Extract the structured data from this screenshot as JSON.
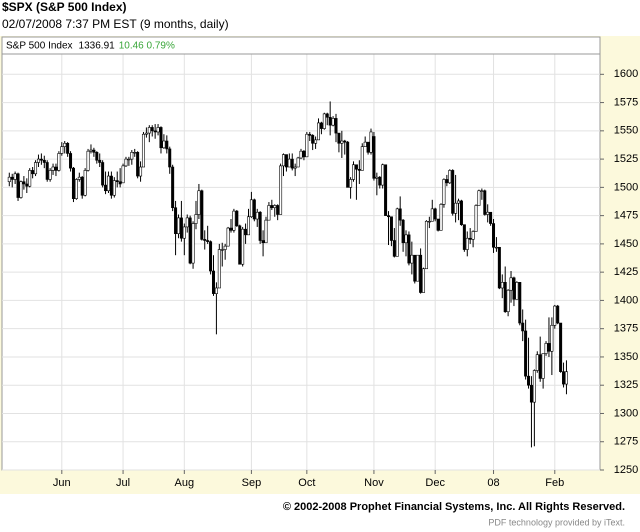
{
  "chart_data": {
    "type": "candlestick",
    "title": "$SPX (S&P 500 Index)",
    "subtitle": "02/07/2008 7:37 PM EST (9 months, daily)",
    "legend": {
      "name": "S&P 500 Index",
      "last": "1336.91",
      "change": "10.46 0.79%",
      "change_color": "#3aa63a"
    },
    "footer": "© 2002-2008 Prophet Financial Systems, Inc. All Rights Reserved.",
    "credit": "PDF technology provided by iText.",
    "ylim": [
      1250,
      1633
    ],
    "yticks": [
      1250,
      1275,
      1300,
      1325,
      1350,
      1375,
      1400,
      1425,
      1450,
      1475,
      1500,
      1525,
      1550,
      1575,
      1600
    ],
    "xlim": [
      -2.5,
      202.5
    ],
    "xticks": [
      {
        "value": 18,
        "label": "Jun"
      },
      {
        "value": 39,
        "label": "Jul"
      },
      {
        "value": 60,
        "label": "Aug"
      },
      {
        "value": 83,
        "label": "Sep"
      },
      {
        "value": 102,
        "label": "Oct"
      },
      {
        "value": 125,
        "label": "Nov"
      },
      {
        "value": 146,
        "label": "Dec"
      },
      {
        "value": 166,
        "label": "08"
      },
      {
        "value": 187,
        "label": "Feb"
      }
    ],
    "grid": true,
    "color": "#000000",
    "ohlc": [
      [
        1505,
        1513,
        1501,
        1509
      ],
      [
        1509,
        1512,
        1500,
        1507
      ],
      [
        1507,
        1514,
        1503,
        1512
      ],
      [
        1512,
        1513,
        1488,
        1491
      ],
      [
        1491,
        1506,
        1490,
        1505
      ],
      [
        1505,
        1510,
        1498,
        1503
      ],
      [
        1503,
        1508,
        1495,
        1501
      ],
      [
        1501,
        1517,
        1500,
        1515
      ],
      [
        1515,
        1518,
        1508,
        1512
      ],
      [
        1512,
        1524,
        1510,
        1522
      ],
      [
        1522,
        1529,
        1518,
        1525
      ],
      [
        1525,
        1530,
        1520,
        1524
      ],
      [
        1524,
        1528,
        1517,
        1522
      ],
      [
        1522,
        1524,
        1505,
        1507
      ],
      [
        1507,
        1517,
        1505,
        1515
      ],
      [
        1515,
        1521,
        1511,
        1518
      ],
      [
        1518,
        1521,
        1510,
        1515
      ],
      [
        1515,
        1532,
        1514,
        1530
      ],
      [
        1530,
        1540,
        1528,
        1536
      ],
      [
        1536,
        1541,
        1530,
        1539
      ],
      [
        1539,
        1540,
        1527,
        1530
      ],
      [
        1530,
        1532,
        1514,
        1517
      ],
      [
        1517,
        1518,
        1487,
        1490
      ],
      [
        1490,
        1508,
        1489,
        1507
      ],
      [
        1507,
        1513,
        1505,
        1509
      ],
      [
        1509,
        1510,
        1490,
        1493
      ],
      [
        1493,
        1517,
        1492,
        1515
      ],
      [
        1515,
        1534,
        1514,
        1532
      ],
      [
        1532,
        1538,
        1530,
        1533
      ],
      [
        1533,
        1535,
        1527,
        1531
      ],
      [
        1531,
        1532,
        1521,
        1524
      ],
      [
        1524,
        1530,
        1518,
        1522
      ],
      [
        1522,
        1524,
        1500,
        1502
      ],
      [
        1502,
        1514,
        1494,
        1497
      ],
      [
        1497,
        1514,
        1495,
        1510
      ],
      [
        1510,
        1514,
        1490,
        1493
      ],
      [
        1493,
        1509,
        1491,
        1506
      ],
      [
        1506,
        1514,
        1500,
        1505
      ],
      [
        1505,
        1517,
        1500,
        1503
      ],
      [
        1504,
        1521,
        1504,
        1519
      ],
      [
        1519,
        1527,
        1518,
        1525
      ],
      [
        1525,
        1527,
        1519,
        1525
      ],
      [
        1525,
        1533,
        1520,
        1531
      ],
      [
        1531,
        1534,
        1527,
        1531
      ],
      [
        1531,
        1532,
        1508,
        1510
      ],
      [
        1510,
        1523,
        1505,
        1518
      ],
      [
        1518,
        1549,
        1518,
        1547
      ],
      [
        1547,
        1553,
        1544,
        1548
      ],
      [
        1548,
        1555,
        1540,
        1553
      ],
      [
        1553,
        1555,
        1545,
        1550
      ],
      [
        1550,
        1556,
        1543,
        1549
      ],
      [
        1549,
        1556,
        1546,
        1553
      ],
      [
        1553,
        1554,
        1530,
        1535
      ],
      [
        1535,
        1547,
        1534,
        1541
      ],
      [
        1541,
        1546,
        1530,
        1534
      ],
      [
        1534,
        1536,
        1512,
        1518
      ],
      [
        1518,
        1520,
        1479,
        1482
      ],
      [
        1482,
        1488,
        1440,
        1459
      ],
      [
        1459,
        1476,
        1455,
        1473
      ],
      [
        1473,
        1488,
        1452,
        1455
      ],
      [
        1455,
        1468,
        1440,
        1465
      ],
      [
        1465,
        1476,
        1460,
        1473
      ],
      [
        1473,
        1475,
        1432,
        1433
      ],
      [
        1433,
        1470,
        1428,
        1468
      ],
      [
        1468,
        1488,
        1463,
        1476
      ],
      [
        1476,
        1503,
        1472,
        1497
      ],
      [
        1497,
        1498,
        1453,
        1454
      ],
      [
        1454,
        1462,
        1445,
        1453
      ],
      [
        1453,
        1466,
        1450,
        1452
      ],
      [
        1452,
        1453,
        1423,
        1426
      ],
      [
        1426,
        1440,
        1404,
        1406
      ],
      [
        1406,
        1416,
        1370,
        1411
      ],
      [
        1411,
        1450,
        1411,
        1445
      ],
      [
        1445,
        1451,
        1430,
        1445
      ],
      [
        1445,
        1450,
        1436,
        1448
      ],
      [
        1448,
        1465,
        1448,
        1464
      ],
      [
        1464,
        1472,
        1460,
        1462
      ],
      [
        1462,
        1481,
        1460,
        1479
      ],
      [
        1479,
        1480,
        1465,
        1466
      ],
      [
        1466,
        1467,
        1432,
        1432
      ],
      [
        1432,
        1465,
        1430,
        1463
      ],
      [
        1463,
        1468,
        1450,
        1458
      ],
      [
        1458,
        1481,
        1458,
        1474
      ],
      [
        1474,
        1496,
        1473,
        1489
      ],
      [
        1489,
        1490,
        1470,
        1472
      ],
      [
        1472,
        1481,
        1465,
        1478
      ],
      [
        1478,
        1479,
        1450,
        1453
      ],
      [
        1453,
        1462,
        1439,
        1451
      ],
      [
        1451,
        1474,
        1451,
        1471
      ],
      [
        1471,
        1487,
        1471,
        1484
      ],
      [
        1484,
        1489,
        1480,
        1482
      ],
      [
        1482,
        1485,
        1474,
        1484
      ],
      [
        1484,
        1485,
        1471,
        1476
      ],
      [
        1476,
        1521,
        1476,
        1519
      ],
      [
        1519,
        1530,
        1510,
        1529
      ],
      [
        1529,
        1529,
        1514,
        1518
      ],
      [
        1518,
        1530,
        1518,
        1525
      ],
      [
        1525,
        1530,
        1515,
        1517
      ],
      [
        1517,
        1521,
        1510,
        1518
      ],
      [
        1518,
        1527,
        1518,
        1526
      ],
      [
        1526,
        1534,
        1525,
        1532
      ],
      [
        1532,
        1533,
        1524,
        1527
      ],
      [
        1527,
        1549,
        1527,
        1547
      ],
      [
        1547,
        1549,
        1541,
        1546
      ],
      [
        1546,
        1547,
        1533,
        1539
      ],
      [
        1539,
        1545,
        1534,
        1542
      ],
      [
        1542,
        1561,
        1542,
        1557
      ],
      [
        1557,
        1558,
        1547,
        1552
      ],
      [
        1552,
        1566,
        1551,
        1565
      ],
      [
        1565,
        1566,
        1555,
        1562
      ],
      [
        1562,
        1576,
        1546,
        1555
      ],
      [
        1555,
        1563,
        1554,
        1561
      ],
      [
        1561,
        1565,
        1540,
        1548
      ],
      [
        1548,
        1548,
        1531,
        1539
      ],
      [
        1539,
        1550,
        1526,
        1541
      ],
      [
        1541,
        1542,
        1529,
        1540
      ],
      [
        1540,
        1541,
        1500,
        1500
      ],
      [
        1500,
        1509,
        1490,
        1507
      ],
      [
        1507,
        1523,
        1505,
        1520
      ],
      [
        1520,
        1520,
        1489,
        1516
      ],
      [
        1516,
        1524,
        1503,
        1515
      ],
      [
        1515,
        1539,
        1515,
        1536
      ],
      [
        1536,
        1545,
        1536,
        1540
      ],
      [
        1540,
        1540,
        1529,
        1531
      ],
      [
        1531,
        1552,
        1529,
        1549
      ],
      [
        1545,
        1549,
        1506,
        1508
      ],
      [
        1508,
        1513,
        1493,
        1509
      ],
      [
        1509,
        1510,
        1499,
        1502
      ],
      [
        1502,
        1521,
        1499,
        1520
      ],
      [
        1520,
        1520,
        1475,
        1475
      ],
      [
        1475,
        1479,
        1449,
        1474
      ],
      [
        1474,
        1474,
        1448,
        1453
      ],
      [
        1453,
        1464,
        1438,
        1439
      ],
      [
        1439,
        1482,
        1439,
        1481
      ],
      [
        1481,
        1492,
        1466,
        1471
      ],
      [
        1471,
        1472,
        1443,
        1451
      ],
      [
        1451,
        1462,
        1439,
        1458
      ],
      [
        1458,
        1461,
        1431,
        1433
      ],
      [
        1433,
        1452,
        1423,
        1440
      ],
      [
        1440,
        1440,
        1415,
        1417
      ],
      [
        1417,
        1440,
        1417,
        1440
      ],
      [
        1440,
        1446,
        1406,
        1407
      ],
      [
        1407,
        1429,
        1407,
        1428
      ],
      [
        1428,
        1471,
        1428,
        1470
      ],
      [
        1470,
        1474,
        1464,
        1470
      ],
      [
        1470,
        1489,
        1470,
        1481
      ],
      [
        1481,
        1482,
        1470,
        1472
      ],
      [
        1472,
        1472,
        1461,
        1462
      ],
      [
        1462,
        1486,
        1462,
        1485
      ],
      [
        1485,
        1508,
        1482,
        1507
      ],
      [
        1507,
        1511,
        1501,
        1504
      ],
      [
        1504,
        1516,
        1503,
        1515
      ],
      [
        1515,
        1516,
        1475,
        1477
      ],
      [
        1477,
        1511,
        1469,
        1486
      ],
      [
        1486,
        1490,
        1471,
        1488
      ],
      [
        1488,
        1489,
        1466,
        1467
      ],
      [
        1467,
        1467,
        1443,
        1445
      ],
      [
        1445,
        1461,
        1439,
        1455
      ],
      [
        1455,
        1464,
        1450,
        1454
      ],
      [
        1454,
        1462,
        1447,
        1461
      ],
      [
        1461,
        1485,
        1461,
        1484
      ],
      [
        1484,
        1498,
        1484,
        1497
      ],
      [
        1497,
        1499,
        1489,
        1497
      ],
      [
        1497,
        1498,
        1475,
        1476
      ],
      [
        1476,
        1485,
        1469,
        1478
      ],
      [
        1478,
        1478,
        1466,
        1468
      ],
      [
        1468,
        1472,
        1442,
        1447
      ],
      [
        1447,
        1456,
        1443,
        1447
      ],
      [
        1447,
        1447,
        1410,
        1411
      ],
      [
        1411,
        1423,
        1402,
        1416
      ],
      [
        1416,
        1430,
        1389,
        1390
      ],
      [
        1390,
        1410,
        1386,
        1409
      ],
      [
        1409,
        1426,
        1398,
        1420
      ],
      [
        1420,
        1421,
        1395,
        1401
      ],
      [
        1401,
        1417,
        1401,
        1416
      ],
      [
        1416,
        1416,
        1378,
        1380
      ],
      [
        1380,
        1392,
        1364,
        1373
      ],
      [
        1373,
        1383,
        1330,
        1333
      ],
      [
        1333,
        1367,
        1322,
        1325
      ],
      [
        1325,
        1333,
        1270,
        1310
      ],
      [
        1310,
        1339,
        1271,
        1338
      ],
      [
        1338,
        1355,
        1336,
        1352
      ],
      [
        1352,
        1368,
        1328,
        1331
      ],
      [
        1331,
        1353,
        1322,
        1353
      ],
      [
        1353,
        1364,
        1351,
        1362
      ],
      [
        1362,
        1385,
        1350,
        1355
      ],
      [
        1355,
        1385,
        1334,
        1378
      ],
      [
        1378,
        1396,
        1375,
        1395
      ],
      [
        1395,
        1396,
        1379,
        1380
      ],
      [
        1380,
        1380,
        1336,
        1337
      ],
      [
        1337,
        1345,
        1323,
        1326
      ],
      [
        1326,
        1347,
        1317,
        1336.91
      ]
    ]
  }
}
